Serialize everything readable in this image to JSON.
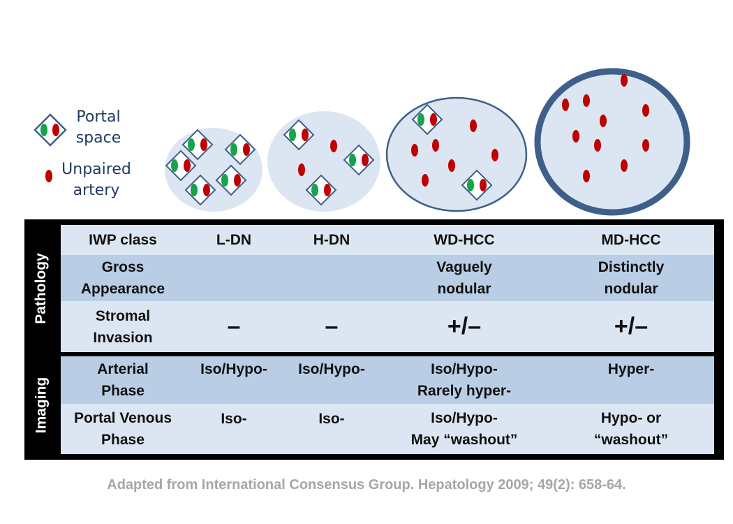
{
  "legend": {
    "portal_label_line1": "Portal",
    "portal_label_line2": "space",
    "artery_label_line1": "Unpaired",
    "artery_label_line2": "artery"
  },
  "colors": {
    "portal_green": "#16a34a",
    "artery_red": "#c00000",
    "nodule_fill": "#dce6f2",
    "nodule_border": "#3d5f8a",
    "row_light": "#dce6f2",
    "row_dark": "#b9cde5"
  },
  "nodules": [
    {
      "name": "L-DN",
      "border": "none"
    },
    {
      "name": "H-DN",
      "border": "none"
    },
    {
      "name": "WD-HCC",
      "border": "thin"
    },
    {
      "name": "MD-HCC",
      "border": "thick"
    }
  ],
  "table": {
    "section_pathology": "Pathology",
    "section_imaging": "Imaging",
    "header": [
      "IWP class",
      "L-DN",
      "H-DN",
      "WD-HCC",
      "MD-HCC"
    ],
    "gross": [
      "Gross\nAppearance",
      "",
      "",
      "Vaguely\nnodular",
      "Distinctly\nnodular"
    ],
    "stromal": [
      "Stromal\nInvasion",
      "–",
      "–",
      "+/–",
      "+/–"
    ],
    "arterial": [
      "Arterial\nPhase",
      "Iso/Hypo-",
      "Iso/Hypo-",
      "Iso/Hypo-\nRarely hyper-",
      "Hyper-"
    ],
    "portal": [
      "Portal Venous\nPhase",
      "Iso-",
      "Iso-",
      "Iso/Hypo-\nMay “washout”",
      "Hypo- or\n“washout”"
    ]
  },
  "citation": "Adapted from International Consensus Group. Hepatology 2009; 49(2): 658-64."
}
